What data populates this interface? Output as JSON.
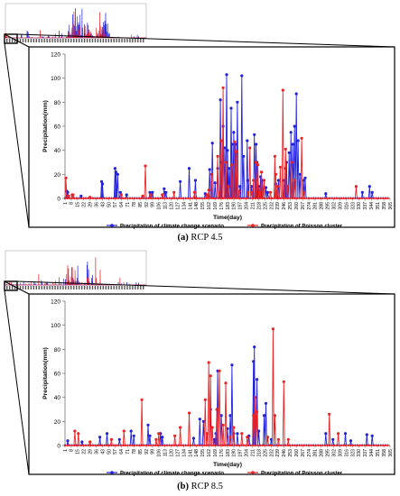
{
  "chart_data": [
    {
      "type": "line",
      "caption_label": "(a)",
      "caption_text": "RCP 4.5",
      "xlabel": "Time(day)",
      "ylabel": "Precipitation(mm)",
      "ylim": [
        0,
        120
      ],
      "yticks": [
        0,
        20,
        40,
        60,
        80,
        100,
        120
      ],
      "xlim": [
        1,
        365
      ],
      "xticks": [
        "1",
        "8",
        "15",
        "22",
        "29",
        "36",
        "43",
        "50",
        "57",
        "64",
        "71",
        "78",
        "85",
        "92",
        "99",
        "106",
        "113",
        "120",
        "127",
        "134",
        "141",
        "148",
        "155",
        "162",
        "169",
        "176",
        "183",
        "190",
        "197",
        "204",
        "211",
        "218",
        "225",
        "232",
        "239",
        "246",
        "253",
        "260",
        "267",
        "274",
        "281",
        "288",
        "295",
        "302",
        "309",
        "316",
        "323",
        "330",
        "337",
        "344",
        "351",
        "358",
        "365"
      ],
      "legend_position": "bottom",
      "grid": false,
      "series": [
        {
          "name": "Precipitation of climate change scenario",
          "color": "#2222dd",
          "marker": "circle",
          "points": [
            [
              3,
              6
            ],
            [
              4,
              5
            ],
            [
              19,
              2
            ],
            [
              42,
              14
            ],
            [
              43,
              12
            ],
            [
              57,
              25
            ],
            [
              58,
              22
            ],
            [
              60,
              20
            ],
            [
              63,
              5
            ],
            [
              70,
              3
            ],
            [
              96,
              5
            ],
            [
              99,
              5
            ],
            [
              112,
              8
            ],
            [
              114,
              5
            ],
            [
              130,
              14
            ],
            [
              140,
              25
            ],
            [
              147,
              15
            ],
            [
              158,
              4
            ],
            [
              163,
              24
            ],
            [
              166,
              46
            ],
            [
              169,
              13
            ],
            [
              172,
              25
            ],
            [
              175,
              82
            ],
            [
              176,
              30
            ],
            [
              178,
              60
            ],
            [
              180,
              42
            ],
            [
              182,
              103
            ],
            [
              183,
              40
            ],
            [
              185,
              25
            ],
            [
              187,
              75
            ],
            [
              188,
              45
            ],
            [
              190,
              55
            ],
            [
              192,
              45
            ],
            [
              194,
              80
            ],
            [
              197,
              10
            ],
            [
              199,
              102
            ],
            [
              201,
              35
            ],
            [
              205,
              48
            ],
            [
              206,
              15
            ],
            [
              210,
              10
            ],
            [
              213,
              53
            ],
            [
              215,
              45
            ],
            [
              216,
              30
            ],
            [
              218,
              10
            ],
            [
              220,
              18
            ],
            [
              222,
              15
            ],
            [
              226,
              9
            ],
            [
              228,
              5
            ],
            [
              237,
              12
            ],
            [
              240,
              15
            ],
            [
              246,
              15
            ],
            [
              248,
              25
            ],
            [
              249,
              30
            ],
            [
              252,
              38
            ],
            [
              254,
              55
            ],
            [
              256,
              45
            ],
            [
              258,
              60
            ],
            [
              260,
              87
            ],
            [
              262,
              48
            ],
            [
              264,
              20
            ],
            [
              268,
              15
            ],
            [
              270,
              17
            ],
            [
              293,
              4
            ],
            [
              334,
              5
            ],
            [
              342,
              10
            ],
            [
              345,
              5
            ]
          ]
        },
        {
          "name": "Precipitation of Poisson cluster",
          "color": "#ee2222",
          "marker": "circle",
          "points": [
            [
              2,
              17
            ],
            [
              5,
              2
            ],
            [
              9,
              3
            ],
            [
              10,
              3
            ],
            [
              29,
              1
            ],
            [
              64,
              3
            ],
            [
              88,
              2
            ],
            [
              91,
              27
            ],
            [
              97,
              3
            ],
            [
              110,
              3
            ],
            [
              123,
              5
            ],
            [
              146,
              5
            ],
            [
              160,
              3
            ],
            [
              162,
              7
            ],
            [
              165,
              20
            ],
            [
              172,
              35
            ],
            [
              174,
              5
            ],
            [
              176,
              48
            ],
            [
              178,
              92
            ],
            [
              181,
              30
            ],
            [
              184,
              10
            ],
            [
              188,
              28
            ],
            [
              191,
              47
            ],
            [
              193,
              39
            ],
            [
              196,
              6
            ],
            [
              206,
              5
            ],
            [
              208,
              42
            ],
            [
              210,
              5
            ],
            [
              212,
              15
            ],
            [
              215,
              30
            ],
            [
              217,
              28
            ],
            [
              219,
              5
            ],
            [
              221,
              22
            ],
            [
              224,
              15
            ],
            [
              231,
              5
            ],
            [
              236,
              35
            ],
            [
              237,
              20
            ],
            [
              239,
              10
            ],
            [
              242,
              26
            ],
            [
              245,
              90
            ],
            [
              248,
              41
            ],
            [
              250,
              10
            ],
            [
              255,
              30
            ],
            [
              258,
              15
            ],
            [
              266,
              50
            ],
            [
              268,
              5
            ],
            [
              327,
              10
            ]
          ]
        }
      ]
    },
    {
      "type": "line",
      "caption_label": "(b)",
      "caption_text": "RCP 8.5",
      "xlabel": "Time(day)",
      "ylabel": "Precipitation(mm)",
      "ylim": [
        0,
        120
      ],
      "yticks": [
        0,
        20,
        40,
        60,
        80,
        100,
        120
      ],
      "xlim": [
        1,
        365
      ],
      "xticks": [
        "1",
        "8",
        "15",
        "22",
        "29",
        "36",
        "43",
        "50",
        "57",
        "64",
        "71",
        "78",
        "85",
        "92",
        "99",
        "106",
        "113",
        "120",
        "127",
        "134",
        "141",
        "148",
        "155",
        "162",
        "169",
        "176",
        "183",
        "190",
        "197",
        "204",
        "211",
        "218",
        "225",
        "232",
        "239",
        "246",
        "253",
        "260",
        "267",
        "274",
        "281",
        "288",
        "295",
        "302",
        "309",
        "316",
        "323",
        "330",
        "337",
        "344",
        "351",
        "358",
        "365"
      ],
      "legend_position": "bottom",
      "grid": false,
      "series": [
        {
          "name": "Precipitation of climate change scenario",
          "color": "#2222dd",
          "marker": "circle",
          "points": [
            [
              4,
              4
            ],
            [
              20,
              3
            ],
            [
              40,
              7
            ],
            [
              48,
              10
            ],
            [
              62,
              5
            ],
            [
              75,
              12
            ],
            [
              78,
              8
            ],
            [
              94,
              17
            ],
            [
              96,
              8
            ],
            [
              108,
              10
            ],
            [
              110,
              7
            ],
            [
              145,
              6
            ],
            [
              152,
              22
            ],
            [
              156,
              20
            ],
            [
              164,
              30
            ],
            [
              168,
              5
            ],
            [
              170,
              10
            ],
            [
              172,
              62
            ],
            [
              176,
              25
            ],
            [
              183,
              14
            ],
            [
              186,
              25
            ],
            [
              188,
              67
            ],
            [
              190,
              10
            ],
            [
              194,
              10
            ],
            [
              207,
              8
            ],
            [
              212,
              70
            ],
            [
              213,
              82
            ],
            [
              216,
              55
            ],
            [
              218,
              12
            ],
            [
              224,
              25
            ],
            [
              226,
              35
            ],
            [
              232,
              5
            ],
            [
              293,
              10
            ],
            [
              301,
              5
            ],
            [
              315,
              10
            ],
            [
              321,
              4
            ],
            [
              339,
              9
            ],
            [
              345,
              8
            ]
          ]
        },
        {
          "name": "Precipitation of Poisson cluster",
          "color": "#ee2222",
          "marker": "circle",
          "points": [
            [
              12,
              12
            ],
            [
              16,
              10
            ],
            [
              29,
              3
            ],
            [
              53,
              5
            ],
            [
              67,
              12
            ],
            [
              87,
              38
            ],
            [
              103,
              5
            ],
            [
              106,
              10
            ],
            [
              124,
              8
            ],
            [
              130,
              15
            ],
            [
              140,
              27
            ],
            [
              158,
              38
            ],
            [
              160,
              10
            ],
            [
              162,
              69
            ],
            [
              164,
              58
            ],
            [
              166,
              15
            ],
            [
              171,
              30
            ],
            [
              174,
              62
            ],
            [
              178,
              17
            ],
            [
              181,
              52
            ],
            [
              186,
              7
            ],
            [
              190,
              15
            ],
            [
              199,
              10
            ],
            [
              205,
              7
            ],
            [
              212,
              25
            ],
            [
              214,
              40
            ],
            [
              216,
              28
            ],
            [
              228,
              7
            ],
            [
              234,
              97
            ],
            [
              236,
              25
            ],
            [
              240,
              5
            ],
            [
              246,
              53
            ],
            [
              251,
              5
            ],
            [
              297,
              26
            ],
            [
              307,
              10
            ]
          ]
        }
      ]
    }
  ]
}
